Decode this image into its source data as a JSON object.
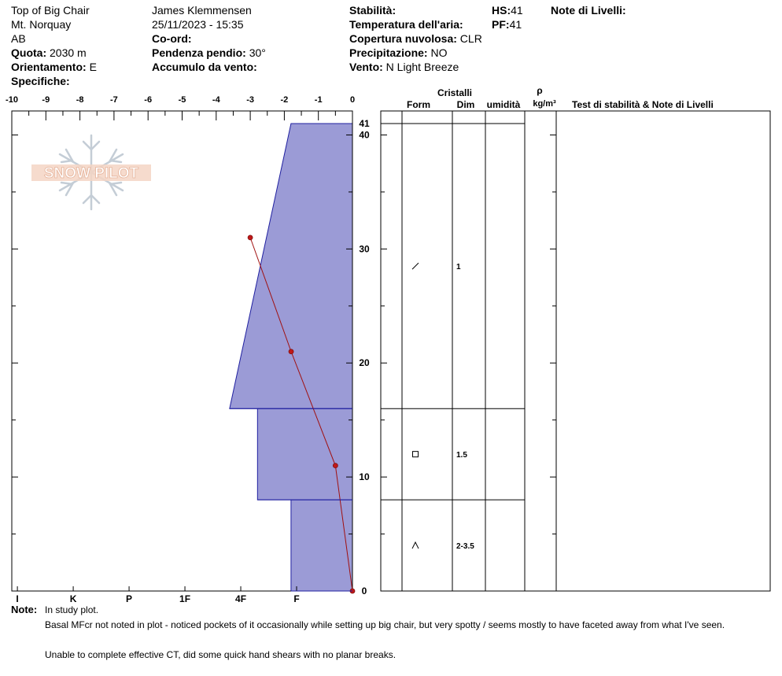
{
  "header": {
    "location": "Top of Big Chair",
    "area": "Mt. Norquay",
    "region": "AB",
    "quota_label": "Quota:",
    "quota_value": "2030 m",
    "orient_label": "Orientamento:",
    "orient_value": "E",
    "specifiche_label": "Specifiche:",
    "observer": "James Klemmensen",
    "datetime": "25/11/2023 - 15:35",
    "coord_label": "Co-ord:",
    "pendenza_label": "Pendenza pendio:",
    "pendenza_value": "30°",
    "accumulo_label": "Accumulo da vento:",
    "stabilita_label": "Stabilità:",
    "temp_label": "Temperatura dell'aria:",
    "copertura_label": "Copertura nuvolosa:",
    "copertura_value": "CLR",
    "precip_label": "Precipitazione:",
    "precip_value": "NO",
    "vento_label": "Vento:",
    "vento_value": "N Light Breeze",
    "hs_label": "HS:",
    "hs_value": "41",
    "pf_label": "PF:",
    "pf_value": "41",
    "note_livelli_label": "Note di Livelli:"
  },
  "logo_text": "SNOW PILOT",
  "chart_data": {
    "type": "area",
    "temp_axis": {
      "ticks": [
        "-10",
        "-9",
        "-8",
        "-7",
        "-6",
        "-5",
        "-4",
        "-3",
        "-2",
        "-1",
        "0"
      ],
      "range": [
        -10,
        0
      ]
    },
    "height_axis": {
      "range": [
        0,
        41
      ],
      "major_ticks": [
        "0",
        "10",
        "20",
        "30",
        "40"
      ],
      "top_label": "41"
    },
    "hardness_axis": {
      "labels": [
        "I",
        "K",
        "P",
        "1F",
        "4F",
        "F"
      ]
    },
    "hardness_profile": [
      {
        "bottom": 16,
        "top": 41,
        "hardness_bottom": 2.2,
        "hardness_top": 1.1
      },
      {
        "bottom": 8,
        "top": 16,
        "hardness_bottom": 1.7,
        "hardness_top": 1.7
      },
      {
        "bottom": 0,
        "top": 8,
        "hardness_bottom": 1.1,
        "hardness_top": 1.1
      }
    ],
    "temperature_profile": [
      {
        "height": 31,
        "temp": -3.0
      },
      {
        "height": 21,
        "temp": -1.8
      },
      {
        "height": 11,
        "temp": -0.5
      },
      {
        "height": 0,
        "temp": 0.0
      }
    ],
    "table_headers": {
      "cristalli": "Cristalli",
      "form": "Form",
      "dim": "Dim",
      "umidita": "umidità",
      "rho": "ρ",
      "density_unit": "kg/m³",
      "test": "Test di stabilità & Note di Livelli"
    },
    "layers": [
      {
        "top": 41,
        "bottom": 16,
        "form_icon": "slash-icon",
        "dim": "1"
      },
      {
        "top": 16,
        "bottom": 8,
        "form_icon": "square-icon",
        "dim": "1.5"
      },
      {
        "top": 8,
        "bottom": 0,
        "form_icon": "caret-icon",
        "dim": "2-3.5"
      }
    ]
  },
  "notes": {
    "label": "Note:",
    "lines": [
      "In study plot.",
      "Basal MFcr not noted in plot - noticed pockets of it occasionally while setting up big chair, but very spotty / seems mostly to have faceted away from what I've seen.",
      "Unable to complete effective CT, did some quick hand shears with no planar breaks."
    ]
  }
}
